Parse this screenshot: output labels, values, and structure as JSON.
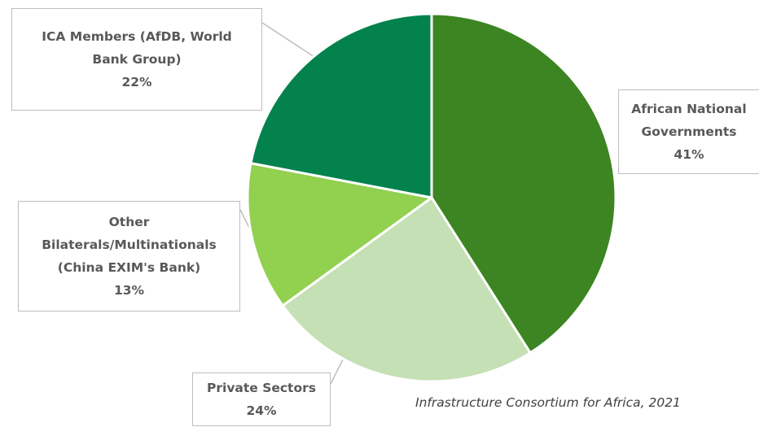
{
  "chart_data": {
    "type": "pie",
    "title": "",
    "slices": [
      {
        "label_lines": [
          "African National",
          "Governments"
        ],
        "value_label": "41%",
        "value": 41,
        "color": "#3c8522"
      },
      {
        "label_lines": [
          "Private Sectors"
        ],
        "value_label": "24%",
        "value": 24,
        "color": "#c5e0b4"
      },
      {
        "label_lines": [
          "Other",
          "Bilaterals/Multinationals",
          "(China EXIM's Bank)"
        ],
        "value_label": "13%",
        "value": 13,
        "color": "#92d050"
      },
      {
        "label_lines": [
          "ICA Members (AfDB, World",
          "Bank Group)"
        ],
        "value_label": "22%",
        "value": 22,
        "color": "#03824e"
      }
    ],
    "legend": "none",
    "source": "Infrastructure Consortium for Africa, 2021"
  }
}
